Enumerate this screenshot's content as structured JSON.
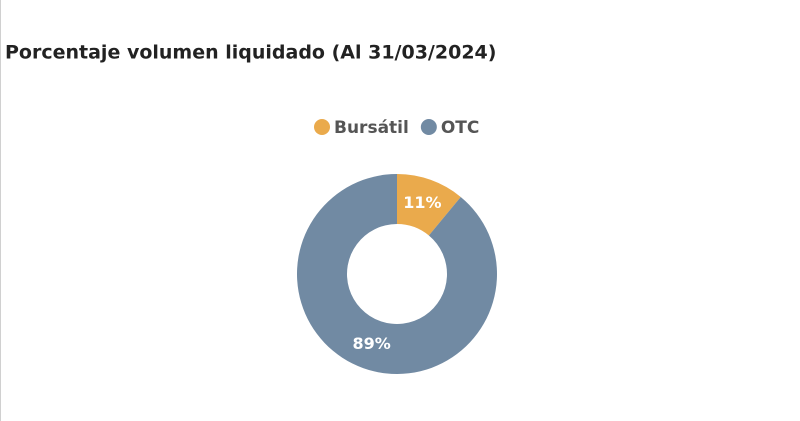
{
  "chart_data": {
    "type": "pie",
    "title": "Porcentaje volumen liquidado (Al 31/03/2024)",
    "categories": [
      "Bursátil",
      "OTC"
    ],
    "values": [
      11,
      89
    ],
    "value_labels": [
      "11%",
      "89%"
    ],
    "colors": [
      "#eaaa4c",
      "#718aa3"
    ]
  }
}
